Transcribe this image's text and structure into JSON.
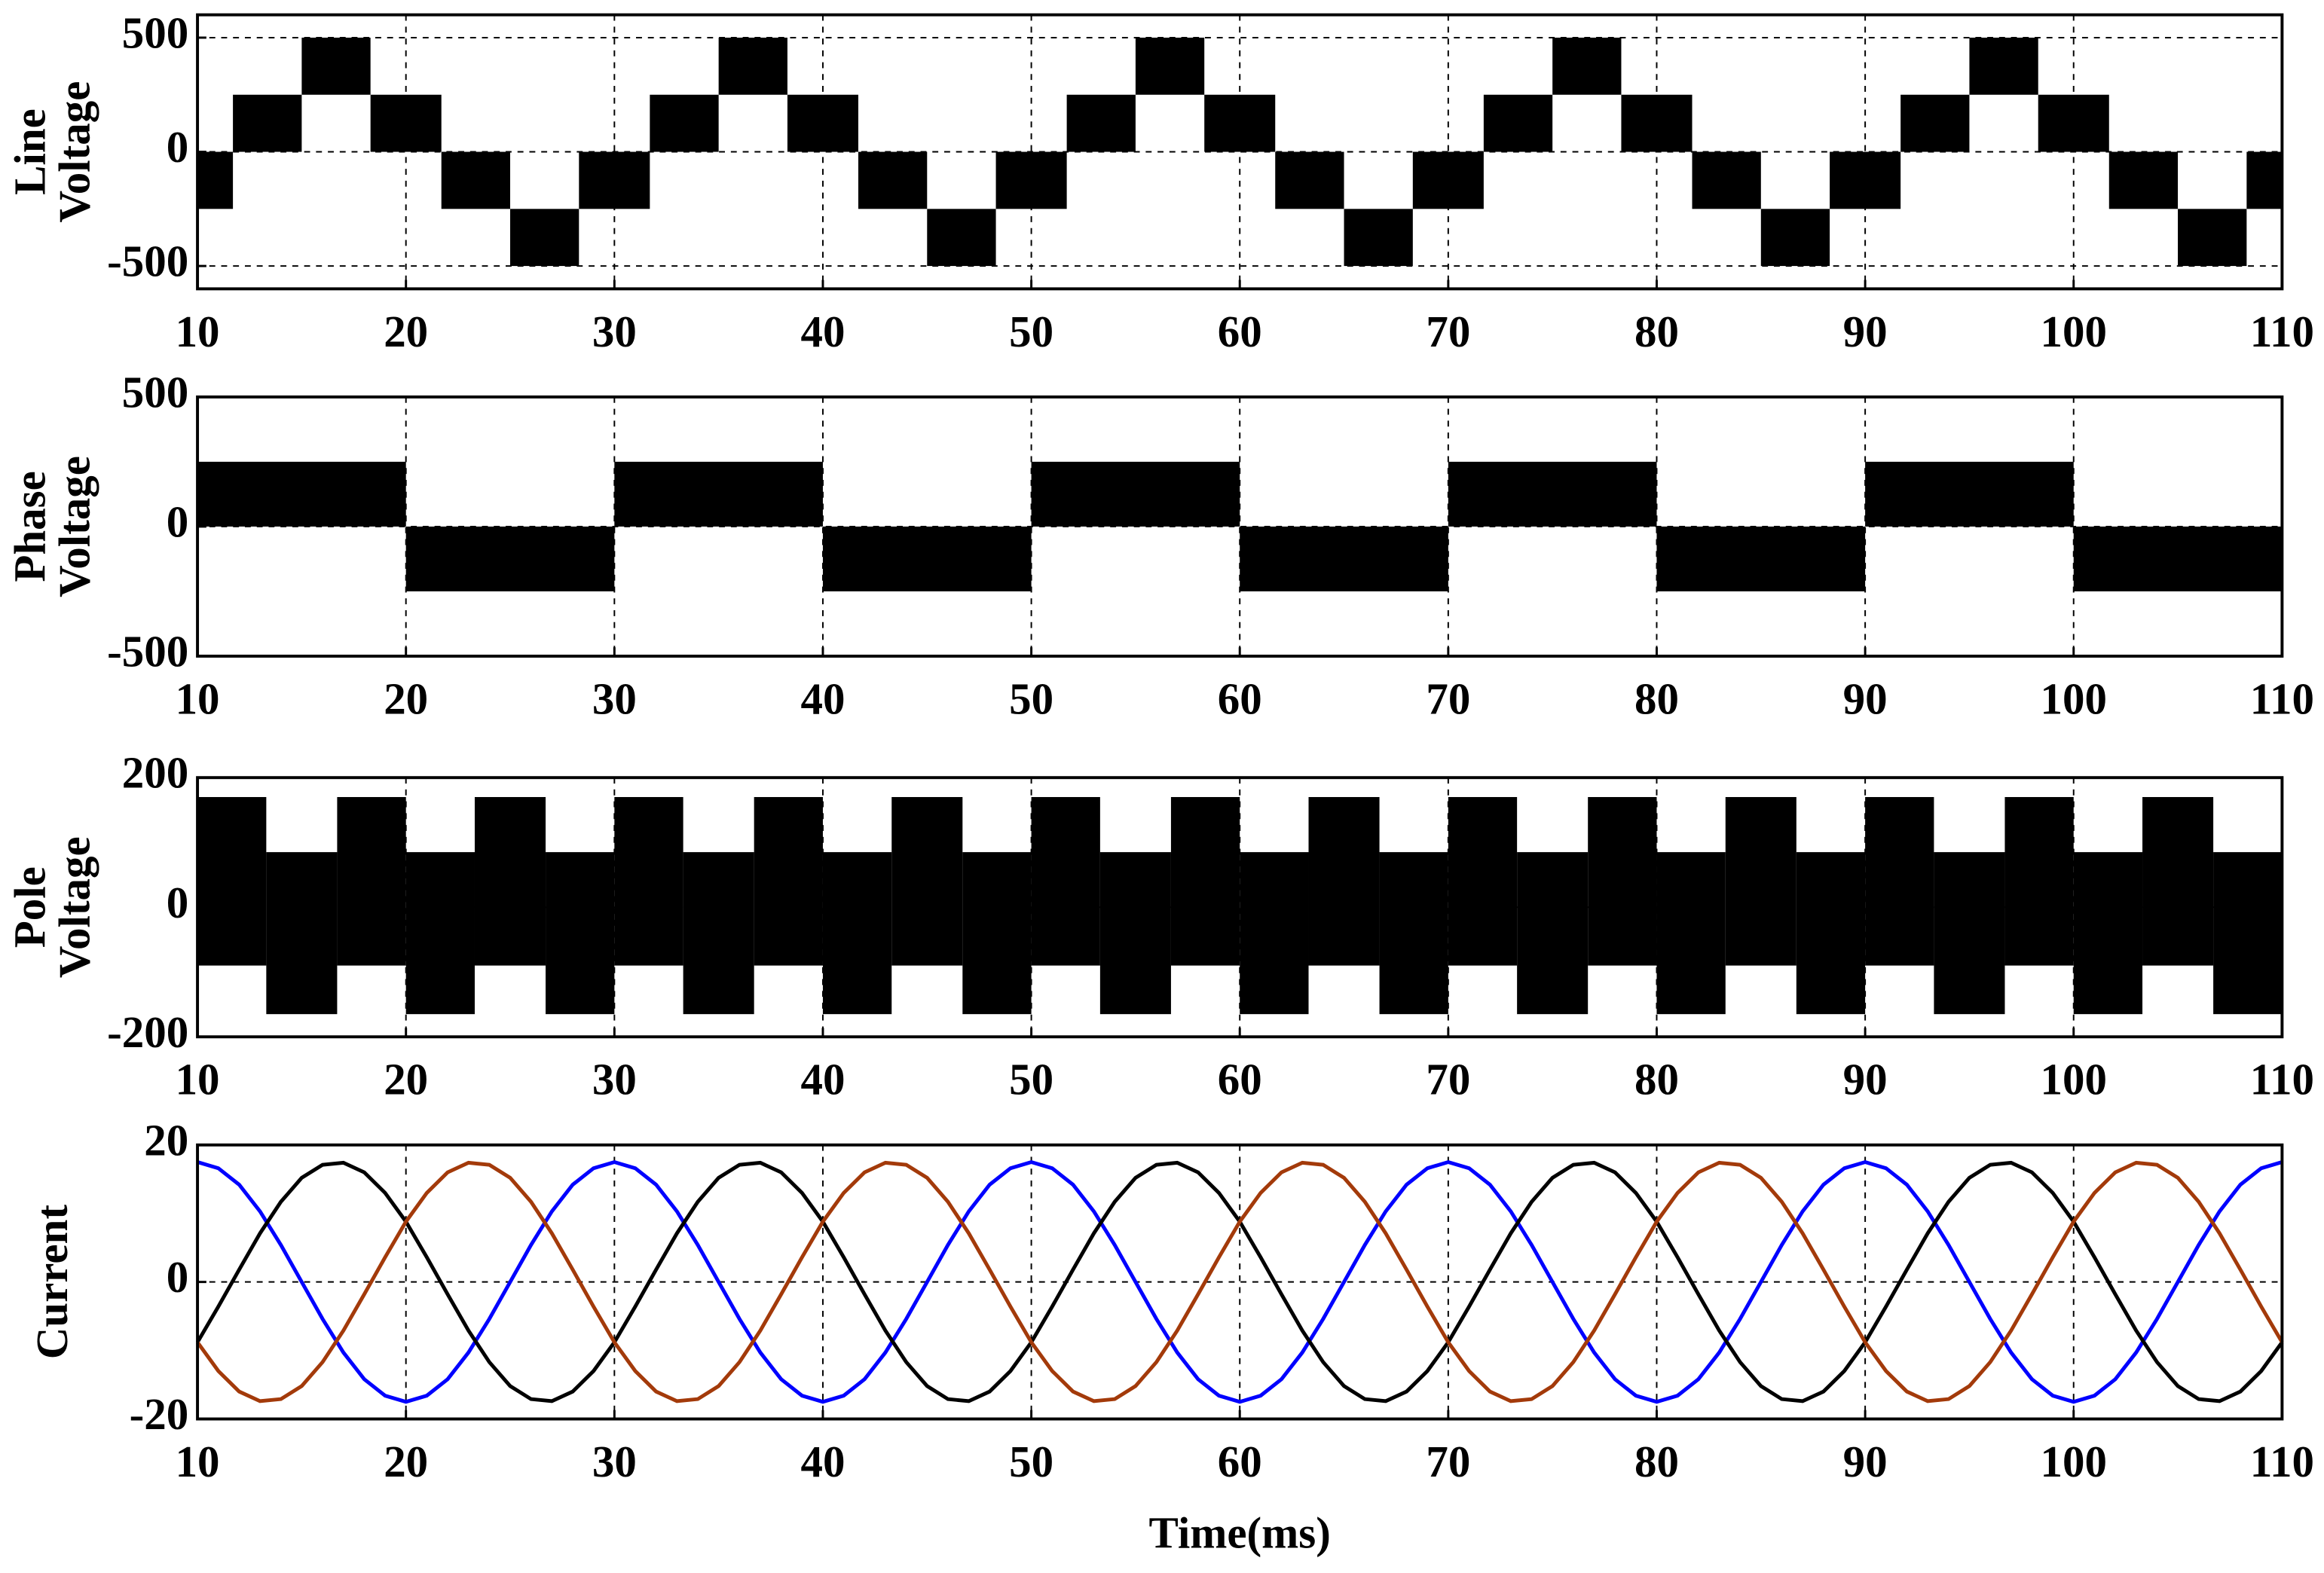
{
  "chart_data": [
    {
      "type": "band",
      "ylabel": [
        "Line",
        "Voltage"
      ],
      "xlim": [
        10,
        110
      ],
      "xticks": [
        10,
        20,
        30,
        40,
        50,
        60,
        70,
        80,
        90,
        100,
        110
      ],
      "ylim": [
        -600,
        600
      ],
      "yticks": [
        500,
        0,
        -500
      ],
      "grid": true,
      "bins": [
        10,
        11.7,
        15,
        18.3,
        21.7,
        25,
        28.3,
        31.7,
        35,
        38.3,
        41.7,
        45,
        48.3,
        51.7,
        55,
        58.3,
        61.7,
        65,
        68.3,
        71.7,
        75,
        78.3,
        81.7,
        85,
        88.3,
        91.7,
        95,
        98.3,
        101.7,
        105,
        108.3,
        110
      ],
      "series": [
        {
          "color": "#000000",
          "lower": [
            -250,
            0,
            250,
            0,
            -250,
            -500,
            -250,
            0,
            250,
            0,
            -250,
            -500,
            -250,
            0,
            250,
            0,
            -250,
            -500,
            -250,
            0,
            250,
            0,
            -250,
            -500,
            -250,
            0,
            250,
            0,
            -250,
            -500,
            -250
          ],
          "upper": [
            0,
            250,
            500,
            250,
            0,
            -250,
            0,
            250,
            500,
            250,
            0,
            -250,
            0,
            250,
            500,
            250,
            0,
            -250,
            0,
            250,
            500,
            250,
            0,
            -250,
            0,
            250,
            500,
            250,
            0,
            -250,
            0
          ]
        }
      ]
    },
    {
      "type": "band",
      "ylabel": [
        "Phase",
        "Voltage"
      ],
      "xlim": [
        10,
        110
      ],
      "xticks": [
        10,
        20,
        30,
        40,
        50,
        60,
        70,
        80,
        90,
        100,
        110
      ],
      "ylim": [
        -500,
        500
      ],
      "yticks": [
        500,
        0,
        -500
      ],
      "grid": true,
      "bins": [
        10,
        20,
        30,
        40,
        50,
        60,
        70,
        80,
        90,
        100,
        110
      ],
      "series": [
        {
          "color": "#000000",
          "lower": [
            0,
            -250,
            0,
            -250,
            0,
            -250,
            0,
            -250,
            0,
            -250
          ],
          "upper": [
            250,
            0,
            250,
            0,
            250,
            0,
            250,
            0,
            250,
            0
          ]
        }
      ]
    },
    {
      "type": "band",
      "ylabel": [
        "Pole",
        "Voltage"
      ],
      "xlim": [
        10,
        110
      ],
      "xticks": [
        10,
        20,
        30,
        40,
        50,
        60,
        70,
        80,
        90,
        100,
        110
      ],
      "ylim": [
        -200,
        200
      ],
      "yticks": [
        200,
        0,
        -200
      ],
      "grid": true,
      "bins": [
        10,
        13.3,
        16.7,
        20,
        23.3,
        26.7,
        30,
        33.3,
        36.7,
        40,
        43.3,
        46.7,
        50,
        53.3,
        56.7,
        60,
        63.3,
        66.7,
        70,
        73.3,
        76.7,
        80,
        83.3,
        86.7,
        90,
        93.3,
        96.7,
        100,
        103.3,
        106.7,
        110
      ],
      "series": [
        {
          "color": "#000000",
          "lower": [
            -90,
            -165,
            -90,
            -165,
            -90,
            -165,
            -90,
            -165,
            -90,
            -165,
            -90,
            -165,
            -90,
            -165,
            -90,
            -165,
            -90,
            -165,
            -90,
            -165,
            -90,
            -165,
            -90,
            -165,
            -90,
            -165,
            -90,
            -165,
            -90,
            -165
          ],
          "upper": [
            170,
            85,
            170,
            85,
            170,
            85,
            170,
            85,
            170,
            85,
            170,
            85,
            170,
            85,
            170,
            85,
            170,
            85,
            170,
            85,
            170,
            85,
            170,
            85,
            170,
            85,
            170,
            85,
            170,
            85
          ]
        }
      ]
    },
    {
      "type": "line",
      "ylabel": [
        "Current"
      ],
      "xlabel": "Time(ms)",
      "xlim": [
        10,
        110
      ],
      "xticks": [
        10,
        20,
        30,
        40,
        50,
        60,
        70,
        80,
        90,
        100,
        110
      ],
      "ylim": [
        -20,
        20
      ],
      "yticks": [
        20,
        0,
        -20
      ],
      "grid": true,
      "x": [
        10,
        11,
        12,
        13,
        14,
        15,
        16,
        17,
        18,
        19,
        20,
        21,
        22,
        23,
        24,
        25,
        26,
        27,
        28,
        29,
        30,
        31,
        32,
        33,
        34,
        35,
        36,
        37,
        38,
        39,
        40,
        41,
        42,
        43,
        44,
        45,
        46,
        47,
        48,
        49,
        50,
        51,
        52,
        53,
        54,
        55,
        56,
        57,
        58,
        59,
        60,
        61,
        62,
        63,
        64,
        65,
        66,
        67,
        68,
        69,
        70,
        71,
        72,
        73,
        74,
        75,
        76,
        77,
        78,
        79,
        80,
        81,
        82,
        83,
        84,
        85,
        86,
        87,
        88,
        89,
        90,
        91,
        92,
        93,
        94,
        95,
        96,
        97,
        98,
        99,
        100,
        101,
        102,
        103,
        104,
        105,
        106,
        107,
        108,
        109,
        110
      ],
      "series": [
        {
          "color": "#0000ff",
          "values": [
            17.5,
            16.6,
            14.2,
            10.3,
            5.4,
            0,
            -5.4,
            -10.3,
            -14.2,
            -16.6,
            -17.5,
            -16.6,
            -14.2,
            -10.3,
            -5.4,
            0,
            5.4,
            10.3,
            14.2,
            16.6,
            17.5,
            16.6,
            14.2,
            10.3,
            5.4,
            0,
            -5.4,
            -10.3,
            -14.2,
            -16.6,
            -17.5,
            -16.6,
            -14.2,
            -10.3,
            -5.4,
            0,
            5.4,
            10.3,
            14.2,
            16.6,
            17.5,
            16.6,
            14.2,
            10.3,
            5.4,
            0,
            -5.4,
            -10.3,
            -14.2,
            -16.6,
            -17.5,
            -16.6,
            -14.2,
            -10.3,
            -5.4,
            0,
            5.4,
            10.3,
            14.2,
            16.6,
            17.5,
            16.6,
            14.2,
            10.3,
            5.4,
            0,
            -5.4,
            -10.3,
            -14.2,
            -16.6,
            -17.5,
            -16.6,
            -14.2,
            -10.3,
            -5.4,
            0,
            5.4,
            10.3,
            14.2,
            16.6,
            17.5,
            16.6,
            14.2,
            10.3,
            5.4,
            0,
            -5.4,
            -10.3,
            -14.2,
            -16.6,
            -17.5,
            -16.6,
            -14.2,
            -10.3,
            -5.4,
            0,
            5.4,
            10.3,
            14.2,
            16.6,
            17.5
          ]
        },
        {
          "color": "#000000",
          "values": [
            -8.8,
            -3.6,
            1.8,
            7.1,
            11.7,
            15.2,
            17.1,
            17.4,
            16,
            13,
            8.8,
            3.6,
            -1.8,
            -7.1,
            -11.7,
            -15.2,
            -17.1,
            -17.4,
            -16,
            -13,
            -8.8,
            -3.6,
            1.8,
            7.1,
            11.7,
            15.2,
            17.1,
            17.4,
            16,
            13,
            8.8,
            3.6,
            -1.8,
            -7.1,
            -11.7,
            -15.2,
            -17.1,
            -17.4,
            -16,
            -13,
            -8.8,
            -3.6,
            1.8,
            7.1,
            11.7,
            15.2,
            17.1,
            17.4,
            16,
            13,
            8.8,
            3.6,
            -1.8,
            -7.1,
            -11.7,
            -15.2,
            -17.1,
            -17.4,
            -16,
            -13,
            -8.8,
            -3.6,
            1.8,
            7.1,
            11.7,
            15.2,
            17.1,
            17.4,
            16,
            13,
            8.8,
            3.6,
            -1.8,
            -7.1,
            -11.7,
            -15.2,
            -17.1,
            -17.4,
            -16,
            -13,
            -8.8,
            -3.6,
            1.8,
            7.1,
            11.7,
            15.2,
            17.1,
            17.4,
            16,
            13,
            8.8,
            3.6,
            -1.8,
            -7.1,
            -11.7,
            -15.2,
            -17.1,
            -17.4,
            -16,
            -13,
            -8.8
          ]
        },
        {
          "color": "#a33a0a",
          "values": [
            -8.8,
            -13,
            -16,
            -17.4,
            -17.1,
            -15.2,
            -11.7,
            -7.1,
            -1.8,
            3.6,
            8.8,
            13,
            16,
            17.4,
            17.1,
            15.2,
            11.7,
            7.1,
            1.8,
            -3.6,
            -8.8,
            -13,
            -16,
            -17.4,
            -17.1,
            -15.2,
            -11.7,
            -7.1,
            -1.8,
            3.6,
            8.8,
            13,
            16,
            17.4,
            17.1,
            15.2,
            11.7,
            7.1,
            1.8,
            -3.6,
            -8.8,
            -13,
            -16,
            -17.4,
            -17.1,
            -15.2,
            -11.7,
            -7.1,
            -1.8,
            3.6,
            8.8,
            13,
            16,
            17.4,
            17.1,
            15.2,
            11.7,
            7.1,
            1.8,
            -3.6,
            -8.8,
            -13,
            -16,
            -17.4,
            -17.1,
            -15.2,
            -11.7,
            -7.1,
            -1.8,
            3.6,
            8.8,
            13,
            16,
            17.4,
            17.1,
            15.2,
            11.7,
            7.1,
            1.8,
            -3.6,
            -8.8,
            -13,
            -16,
            -17.4,
            -17.1,
            -15.2,
            -11.7,
            -7.1,
            -1.8,
            3.6,
            8.8,
            13,
            16,
            17.4,
            17.1,
            15.2,
            11.7,
            7.1,
            1.8,
            -3.6,
            -8.8
          ]
        }
      ]
    }
  ]
}
